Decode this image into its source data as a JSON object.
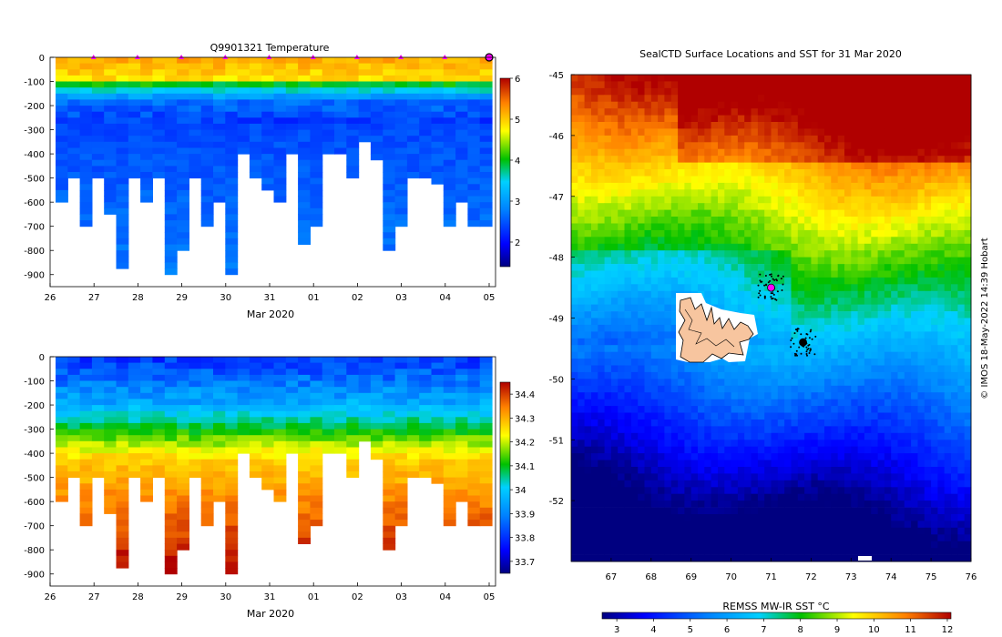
{
  "chart_data": [
    {
      "type": "heatmap",
      "title": "Q9901321  Temperature",
      "xlabel": "Mar 2020",
      "ylabel": "",
      "x_ticks": [
        "26",
        "27",
        "28",
        "29",
        "30",
        "31",
        "01",
        "02",
        "03",
        "04",
        "05"
      ],
      "y_ticks": [
        "0",
        "-100",
        "-200",
        "-300",
        "-400",
        "-500",
        "-600",
        "-700",
        "-800",
        "-900"
      ],
      "ylim": [
        -950,
        0
      ],
      "colorbar": {
        "min": 1.4,
        "max": 6.0,
        "ticks": [
          "2",
          "3",
          "4",
          "5",
          "6"
        ]
      },
      "surface_markers": {
        "days": [
          1,
          2,
          3,
          4,
          5,
          6,
          7,
          8,
          9,
          10
        ],
        "color": "#ff00ff"
      }
    },
    {
      "type": "heatmap",
      "title": "",
      "xlabel": "Mar 2020",
      "ylabel": "",
      "x_ticks": [
        "26",
        "27",
        "28",
        "29",
        "30",
        "31",
        "01",
        "02",
        "03",
        "04",
        "05"
      ],
      "y_ticks": [
        "0",
        "-100",
        "-200",
        "-300",
        "-400",
        "-500",
        "-600",
        "-700",
        "-800",
        "-900"
      ],
      "ylim": [
        -950,
        0
      ],
      "colorbar": {
        "min": 33.65,
        "max": 34.45,
        "ticks": [
          "33.7",
          "33.8",
          "33.9",
          "34",
          "34.1",
          "34.2",
          "34.3",
          "34.4"
        ]
      }
    },
    {
      "type": "heatmap",
      "title": "SealCTD Surface Locations and SST for 31 Mar 2020",
      "xlabel": "",
      "ylabel": "",
      "x_ticks": [
        "67",
        "68",
        "69",
        "70",
        "71",
        "72",
        "73",
        "74",
        "75",
        "76"
      ],
      "y_ticks": [
        "-45",
        "-46",
        "-47",
        "-48",
        "-49",
        "-50",
        "-51",
        "-52"
      ],
      "xlim": [
        66,
        76
      ],
      "ylim": [
        -53,
        -45
      ],
      "colorbar": {
        "label": "REMSS MW-IR SST °C",
        "min": 2.6,
        "max": 12.1,
        "ticks": [
          "3",
          "4",
          "5",
          "6",
          "7",
          "8",
          "9",
          "10",
          "11",
          "12"
        ]
      },
      "credit": "© IMOS 18-May-2022 14:39 Hobart",
      "seal_positions": [
        {
          "lon": 71.0,
          "lat": -48.5,
          "color": "#ff00ff"
        },
        {
          "lon": 71.8,
          "lat": -49.4,
          "color": "#000000"
        }
      ]
    }
  ]
}
